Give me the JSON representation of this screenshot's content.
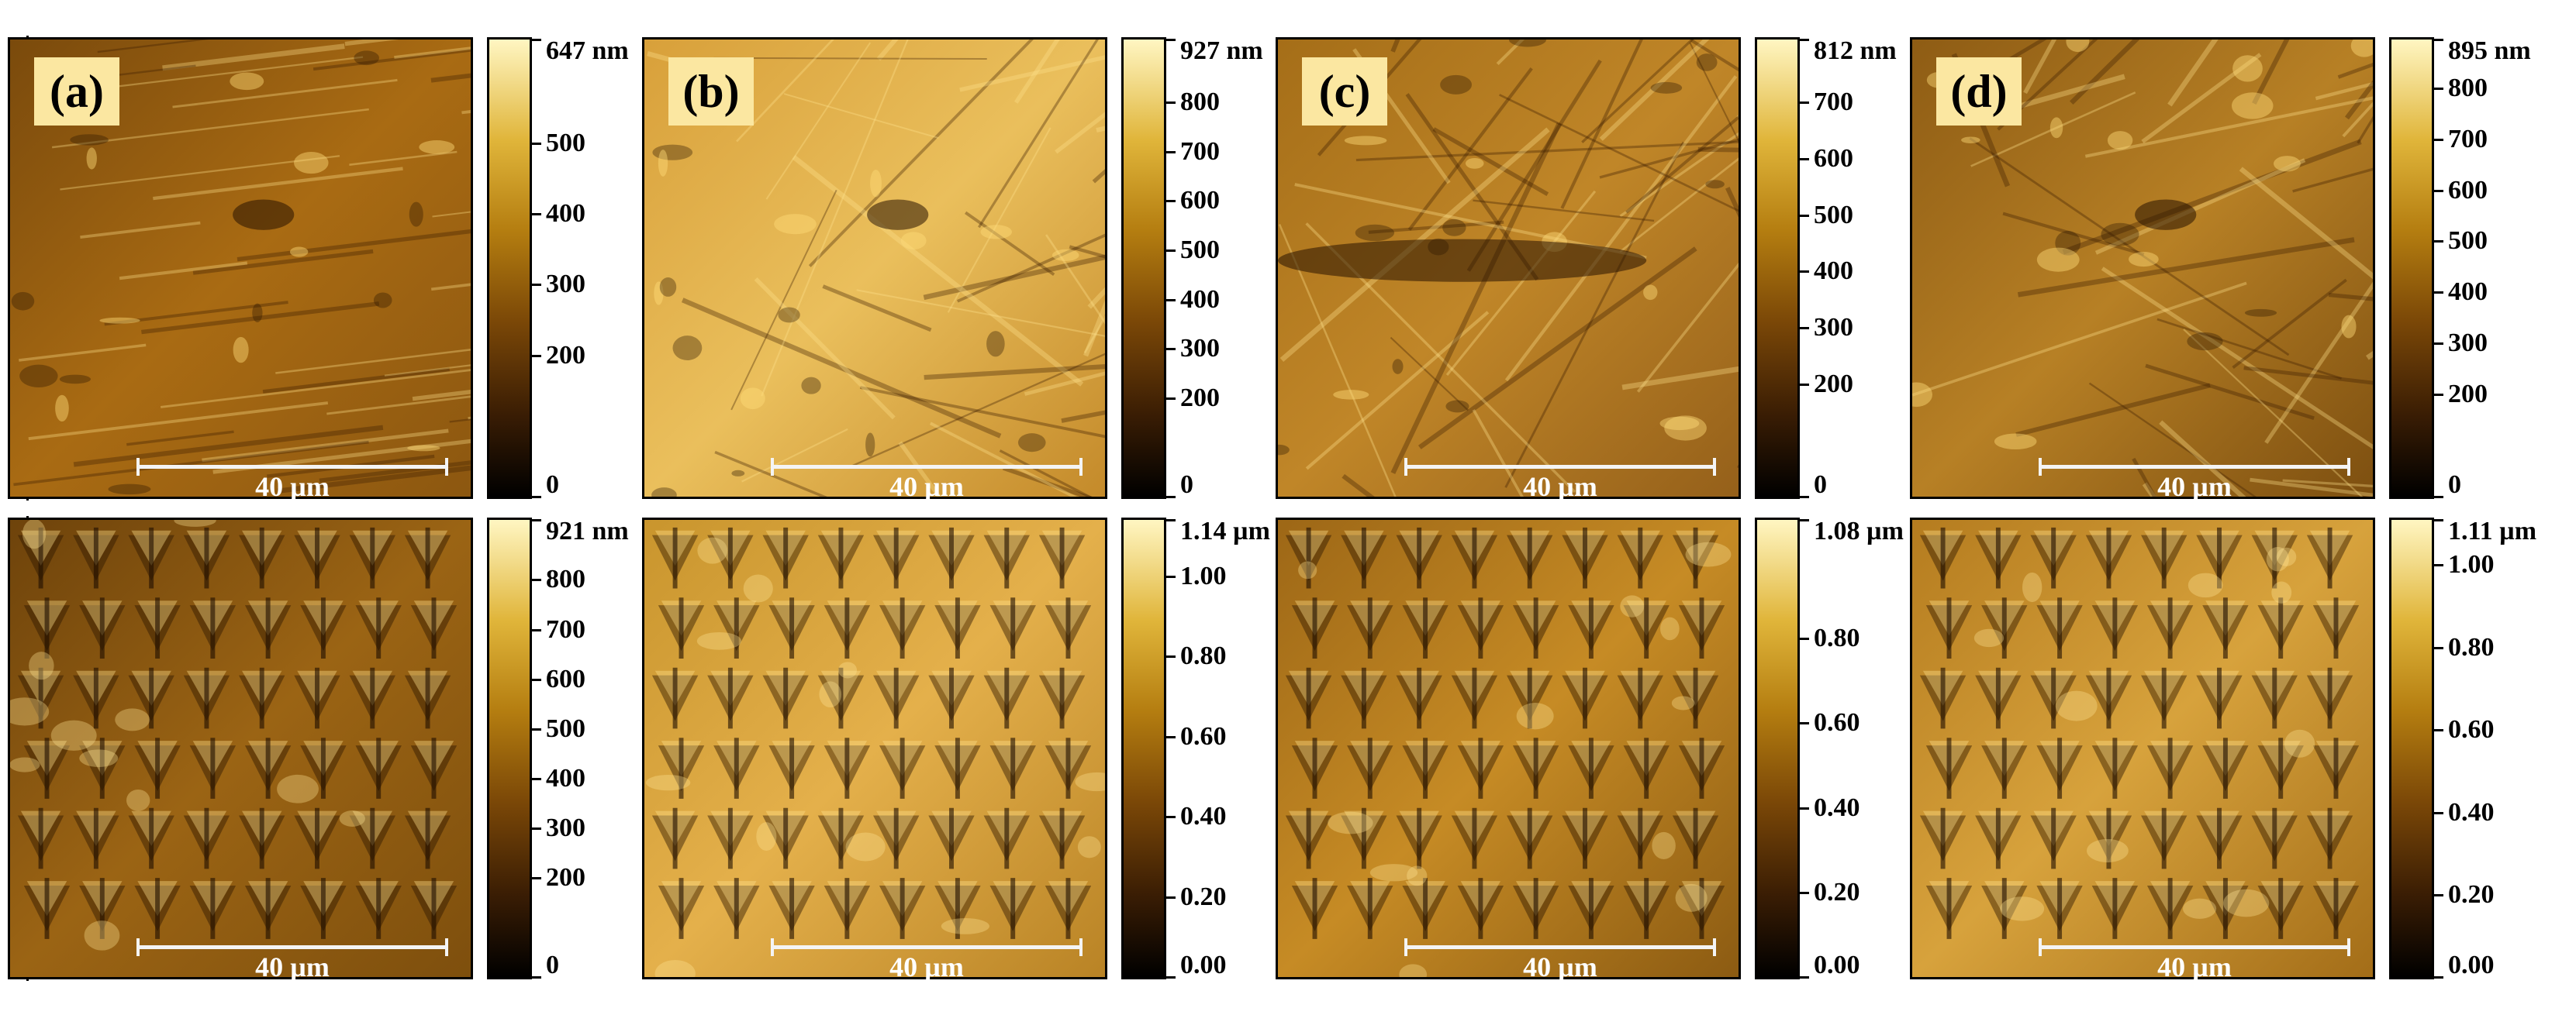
{
  "figure": {
    "panels": [
      {
        "label": "(a)",
        "scale_text": "40 µm",
        "top": true,
        "colorbar": {
          "ticks": [
            {
              "text": "647 nm",
              "pos": 1.0
            },
            {
              "text": "500",
              "pos": 0.773
            },
            {
              "text": "400",
              "pos": 0.618
            },
            {
              "text": "300",
              "pos": 0.464
            },
            {
              "text": "200",
              "pos": 0.309
            },
            {
              "text": "0",
              "pos": 0.0
            }
          ]
        }
      },
      {
        "label": "(b)",
        "scale_text": "40 µm",
        "top": true,
        "colorbar": {
          "ticks": [
            {
              "text": "927 nm",
              "pos": 1.0
            },
            {
              "text": "800",
              "pos": 0.863
            },
            {
              "text": "700",
              "pos": 0.755
            },
            {
              "text": "600",
              "pos": 0.647
            },
            {
              "text": "500",
              "pos": 0.539
            },
            {
              "text": "400",
              "pos": 0.431
            },
            {
              "text": "300",
              "pos": 0.324
            },
            {
              "text": "200",
              "pos": 0.216
            },
            {
              "text": "0",
              "pos": 0.0
            }
          ]
        }
      },
      {
        "label": "(c)",
        "scale_text": "40 µm",
        "top": true,
        "colorbar": {
          "ticks": [
            {
              "text": "812 nm",
              "pos": 1.0
            },
            {
              "text": "700",
              "pos": 0.862
            },
            {
              "text": "600",
              "pos": 0.739
            },
            {
              "text": "500",
              "pos": 0.616
            },
            {
              "text": "400",
              "pos": 0.493
            },
            {
              "text": "300",
              "pos": 0.369
            },
            {
              "text": "200",
              "pos": 0.246
            },
            {
              "text": "0",
              "pos": 0.0
            }
          ]
        }
      },
      {
        "label": "(d)",
        "scale_text": "40 µm",
        "top": true,
        "colorbar": {
          "ticks": [
            {
              "text": "895 nm",
              "pos": 1.0
            },
            {
              "text": "800",
              "pos": 0.894
            },
            {
              "text": "700",
              "pos": 0.782
            },
            {
              "text": "600",
              "pos": 0.67
            },
            {
              "text": "500",
              "pos": 0.559
            },
            {
              "text": "400",
              "pos": 0.447
            },
            {
              "text": "300",
              "pos": 0.335
            },
            {
              "text": "200",
              "pos": 0.223
            },
            {
              "text": "0",
              "pos": 0.0
            }
          ]
        }
      },
      {
        "label": "",
        "scale_text": "40 µm",
        "top": false,
        "colorbar": {
          "ticks": [
            {
              "text": "921 nm",
              "pos": 1.0
            },
            {
              "text": "800",
              "pos": 0.869
            },
            {
              "text": "700",
              "pos": 0.76
            },
            {
              "text": "600",
              "pos": 0.651
            },
            {
              "text": "500",
              "pos": 0.543
            },
            {
              "text": "400",
              "pos": 0.434
            },
            {
              "text": "300",
              "pos": 0.326
            },
            {
              "text": "200",
              "pos": 0.217
            },
            {
              "text": "0",
              "pos": 0.0
            }
          ]
        }
      },
      {
        "label": "",
        "scale_text": "40 µm",
        "top": false,
        "colorbar": {
          "ticks": [
            {
              "text": "1.14 µm",
              "pos": 1.0
            },
            {
              "text": "1.00",
              "pos": 0.877
            },
            {
              "text": "0.80",
              "pos": 0.702
            },
            {
              "text": "0.60",
              "pos": 0.526
            },
            {
              "text": "0.40",
              "pos": 0.351
            },
            {
              "text": "0.20",
              "pos": 0.175
            },
            {
              "text": "0.00",
              "pos": 0.0
            }
          ]
        }
      },
      {
        "label": "",
        "scale_text": "40 µm",
        "top": false,
        "colorbar": {
          "ticks": [
            {
              "text": "1.08 µm",
              "pos": 1.0
            },
            {
              "text": "0.80",
              "pos": 0.741
            },
            {
              "text": "0.60",
              "pos": 0.556
            },
            {
              "text": "0.40",
              "pos": 0.37
            },
            {
              "text": "0.20",
              "pos": 0.185
            },
            {
              "text": "0.00",
              "pos": 0.0
            }
          ]
        }
      },
      {
        "label": "",
        "scale_text": "40 µm",
        "top": false,
        "colorbar": {
          "ticks": [
            {
              "text": "1.11 µm",
              "pos": 1.0
            },
            {
              "text": "1.00",
              "pos": 0.901
            },
            {
              "text": "0.80",
              "pos": 0.721
            },
            {
              "text": "0.60",
              "pos": 0.541
            },
            {
              "text": "0.40",
              "pos": 0.36
            },
            {
              "text": "0.20",
              "pos": 0.18
            },
            {
              "text": "0.00",
              "pos": 0.0
            }
          ]
        }
      }
    ]
  }
}
